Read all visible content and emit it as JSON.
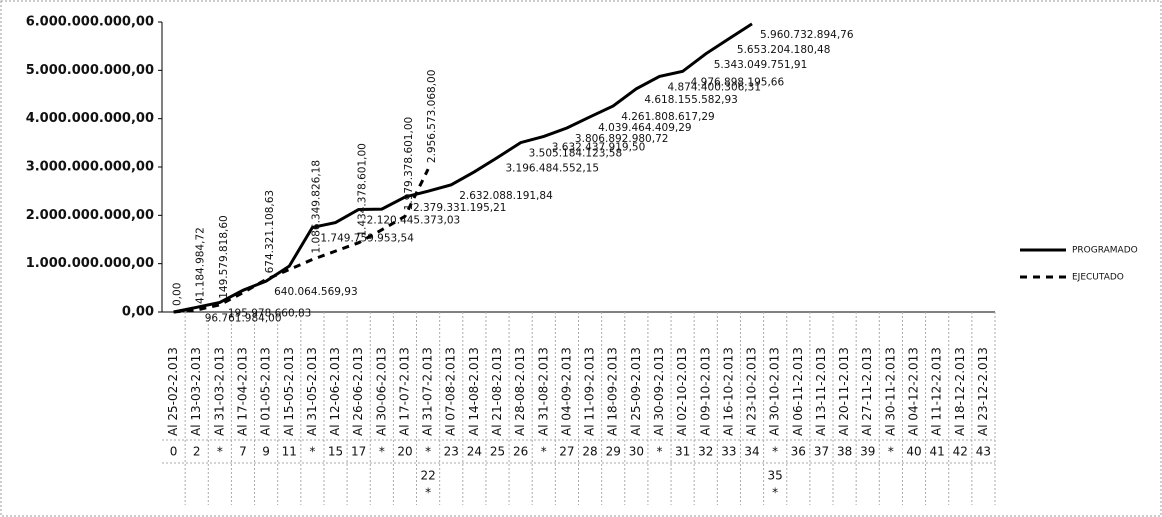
{
  "chart_data": {
    "type": "line",
    "categories": [
      "Al 25-02-2.013",
      "Al 13-03-2.013",
      "Al 31-03-2.013",
      "Al 17-04-2.013",
      "Al 01-05-2.013",
      "Al 15-05-2.013",
      "Al 31-05-2.013",
      "Al 12-06-2.013",
      "Al 26-06-2.013",
      "Al 30-06-2.013",
      "Al 17-07-2.013",
      "Al 31-07-2.013",
      "Al 07-08-2.013",
      "Al 14-08-2.013",
      "Al 21-08-2.013",
      "Al 28-08-2.013",
      "Al 31-08-2.013",
      "Al 04-09-2.013",
      "Al 11-09-2.013",
      "Al 18-09-2.013",
      "Al 25-09-2.013",
      "Al 30-09-2.013",
      "Al 02-10-2.013",
      "Al 09-10-2.013",
      "Al 16-10-2.013",
      "Al 23-10-2.013",
      "Al 30-10-2.013",
      "Al 06-11-2.013",
      "Al 13-11-2.013",
      "Al 20-11-2.013",
      "Al 27-11-2.013",
      "Al 30-11-2.013",
      "Al 04-12-2.013",
      "Al 11-12-2.013",
      "Al 18-12-2.013",
      "Al 23-12-2.013"
    ],
    "row_numbers": [
      "0",
      "2",
      "*",
      "7",
      "9",
      "11",
      "*",
      "15",
      "17",
      "*",
      "20",
      "*",
      "23",
      "24",
      "25",
      "26",
      "*",
      "27",
      "28",
      "29",
      "30",
      "*",
      "31",
      "32",
      "33",
      "34",
      "*",
      "36",
      "37",
      "38",
      "39",
      "*",
      "40",
      "41",
      "42",
      "43"
    ],
    "row_extra": [
      null,
      null,
      null,
      null,
      null,
      null,
      null,
      null,
      null,
      null,
      null,
      "22",
      null,
      null,
      null,
      null,
      null,
      null,
      null,
      null,
      null,
      null,
      null,
      null,
      null,
      null,
      "35",
      null,
      null,
      null,
      null,
      null,
      null,
      null,
      null,
      null
    ],
    "row_extra_mark": [
      null,
      null,
      null,
      null,
      null,
      null,
      null,
      null,
      null,
      null,
      null,
      "*",
      null,
      null,
      null,
      null,
      null,
      null,
      null,
      null,
      null,
      null,
      null,
      null,
      null,
      null,
      "*",
      null,
      null,
      null,
      null,
      null,
      null,
      null,
      null,
      null
    ],
    "series": [
      {
        "name": "PROGRAMADO",
        "color": "#000000",
        "dash": false,
        "values": [
          0,
          96761984.0,
          195978660.83,
          450000000,
          640064569.93,
          950000000,
          1749759953.54,
          1850000000,
          2120445373.03,
          2130000000,
          2379331195.21,
          2500000000,
          2632088191.84,
          2900000000,
          3196484552.15,
          3505184123.58,
          3632437919.5,
          3806892980.72,
          4039464409.29,
          4261808617.29,
          4618155582.93,
          4874400306.31,
          4976898195.66,
          5343049751.91,
          5653204180.48,
          5960732894.76,
          null,
          null,
          null,
          null,
          null,
          null,
          null,
          null,
          null,
          null
        ],
        "value_labels": [
          null,
          "96.761.984,00",
          "195.978.660,83",
          null,
          "640.064.569,93",
          null,
          "1.749.759.953,54",
          null,
          "2.120.445.373,03",
          null,
          "2.379.331.195,21",
          null,
          "2.632.088.191,84",
          null,
          "3.196.484.552,15",
          "3.505.184.123,58",
          "3.632.437.919,50",
          "3.806.892.980,72",
          "4.039.464.409,29",
          "4.261.808.617,29",
          "4.618.155.582,93",
          "4.874.400.306,31",
          "4.976.898.195,66",
          "5.343.049.751,91",
          "5.653.204.180,48",
          "5.960.732.894,76",
          null,
          null,
          null,
          null,
          null,
          null,
          null,
          null,
          null,
          null
        ]
      },
      {
        "name": "EJECUTADO",
        "color": "#000000",
        "dash": true,
        "values": [
          0,
          41184984.72,
          149579818.6,
          400000000,
          674321108.63,
          880000000,
          1086349826.18,
          1260000000,
          1434378601.0,
          1700000000,
          1979378601.0,
          2956573068.0,
          null,
          null,
          null,
          null,
          null,
          null,
          null,
          null,
          null,
          null,
          null,
          null,
          null,
          null,
          null,
          null,
          null,
          null,
          null,
          null,
          null,
          null,
          null,
          null
        ],
        "value_labels": [
          "0,00",
          "41.184.984,72",
          "149.579.818,60",
          null,
          "674.321.108,63",
          null,
          "1.086.349.826,18",
          null,
          "1.434.378.601,00",
          null,
          "1.979.378.601,00",
          "2.956.573.068,00",
          null,
          null,
          null,
          null,
          null,
          null,
          null,
          null,
          null,
          null,
          null,
          null,
          null,
          null,
          null,
          null,
          null,
          null,
          null,
          null,
          null,
          null,
          null,
          null
        ]
      }
    ],
    "ylim": [
      0,
      6000000000
    ],
    "yticks": [
      {
        "value": 0,
        "label": "0,00"
      },
      {
        "value": 1000000000,
        "label": "1.000.000.000,00"
      },
      {
        "value": 2000000000,
        "label": "2.000.000.000,00"
      },
      {
        "value": 3000000000,
        "label": "3.000.000.000,00"
      },
      {
        "value": 4000000000,
        "label": "4.000.000.000,00"
      },
      {
        "value": 5000000000,
        "label": "5.000.000.000,00"
      },
      {
        "value": 6000000000,
        "label": "6.000.000.000,00"
      }
    ],
    "grid": false,
    "legend": "right"
  }
}
